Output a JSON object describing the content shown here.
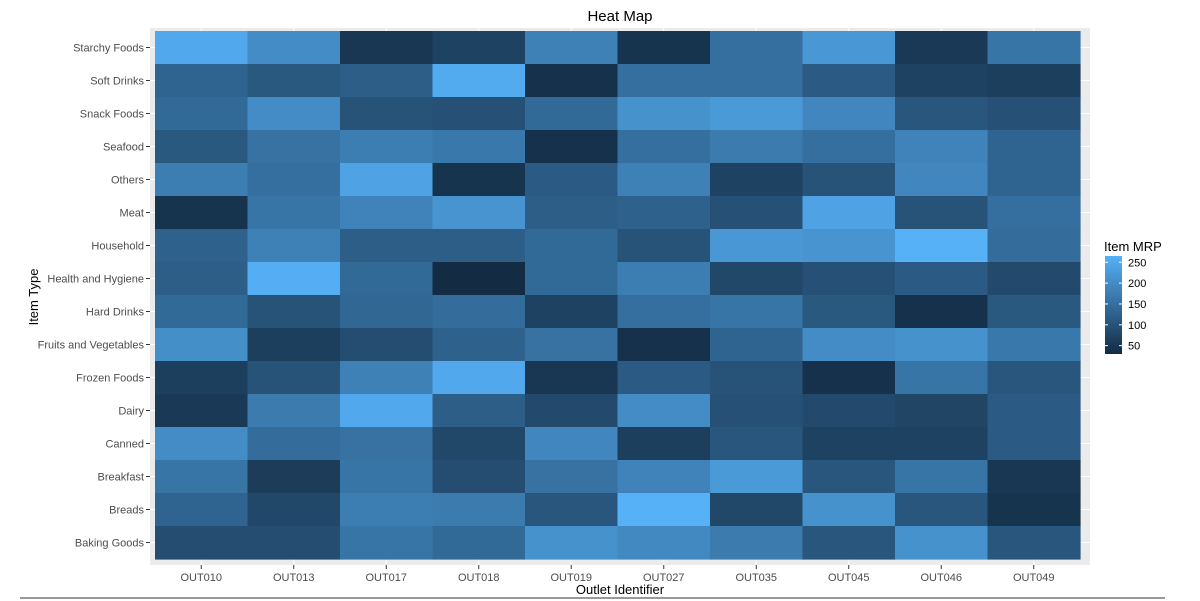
{
  "chart_data": {
    "type": "heatmap",
    "title": "Heat Map",
    "xlabel": "Outlet Identifier",
    "ylabel": "Item Type",
    "x": [
      "OUT010",
      "OUT013",
      "OUT017",
      "OUT018",
      "OUT019",
      "OUT027",
      "OUT035",
      "OUT045",
      "OUT046",
      "OUT049"
    ],
    "y": [
      "Starchy Foods",
      "Soft Drinks",
      "Snack Foods",
      "Seafood",
      "Others",
      "Meat",
      "Household",
      "Health and Hygiene",
      "Hard Drinks",
      "Fruits and Vegetables",
      "Frozen Foods",
      "Dairy",
      "Canned",
      "Breakfast",
      "Breads",
      "Baking Goods"
    ],
    "values": [
      [
        250,
        200,
        50,
        70,
        180,
        45,
        150,
        220,
        55,
        160
      ],
      [
        130,
        110,
        120,
        255,
        40,
        150,
        150,
        115,
        70,
        65
      ],
      [
        140,
        200,
        100,
        95,
        140,
        210,
        225,
        190,
        105,
        95
      ],
      [
        110,
        155,
        175,
        165,
        40,
        150,
        170,
        150,
        185,
        130
      ],
      [
        175,
        150,
        240,
        45,
        115,
        180,
        70,
        100,
        190,
        130
      ],
      [
        45,
        160,
        185,
        215,
        120,
        125,
        95,
        240,
        100,
        150
      ],
      [
        125,
        180,
        120,
        120,
        140,
        100,
        220,
        215,
        265,
        145
      ],
      [
        120,
        260,
        140,
        30,
        140,
        175,
        80,
        95,
        115,
        85
      ],
      [
        140,
        100,
        135,
        145,
        70,
        150,
        160,
        110,
        40,
        110
      ],
      [
        205,
        65,
        90,
        125,
        155,
        40,
        130,
        200,
        210,
        165
      ],
      [
        65,
        100,
        180,
        250,
        50,
        115,
        100,
        40,
        160,
        105
      ],
      [
        55,
        170,
        250,
        120,
        85,
        200,
        95,
        85,
        75,
        115
      ],
      [
        200,
        145,
        155,
        80,
        190,
        65,
        105,
        70,
        70,
        115
      ],
      [
        160,
        60,
        160,
        90,
        155,
        185,
        225,
        105,
        160,
        50
      ],
      [
        130,
        80,
        175,
        170,
        105,
        265,
        80,
        210,
        105,
        45
      ],
      [
        90,
        90,
        160,
        140,
        210,
        195,
        170,
        105,
        210,
        105
      ]
    ],
    "value_range": [
      30,
      265
    ],
    "legend": {
      "title": "Item MRP",
      "position": "right",
      "ticks": [
        250,
        200,
        150,
        100,
        50
      ],
      "tick_labels": [
        "250",
        "200",
        "150",
        "100",
        "50"
      ]
    },
    "colors": {
      "low": "#132b43",
      "high": "#56b1f7",
      "panel_bg": "#ebebeb"
    }
  }
}
